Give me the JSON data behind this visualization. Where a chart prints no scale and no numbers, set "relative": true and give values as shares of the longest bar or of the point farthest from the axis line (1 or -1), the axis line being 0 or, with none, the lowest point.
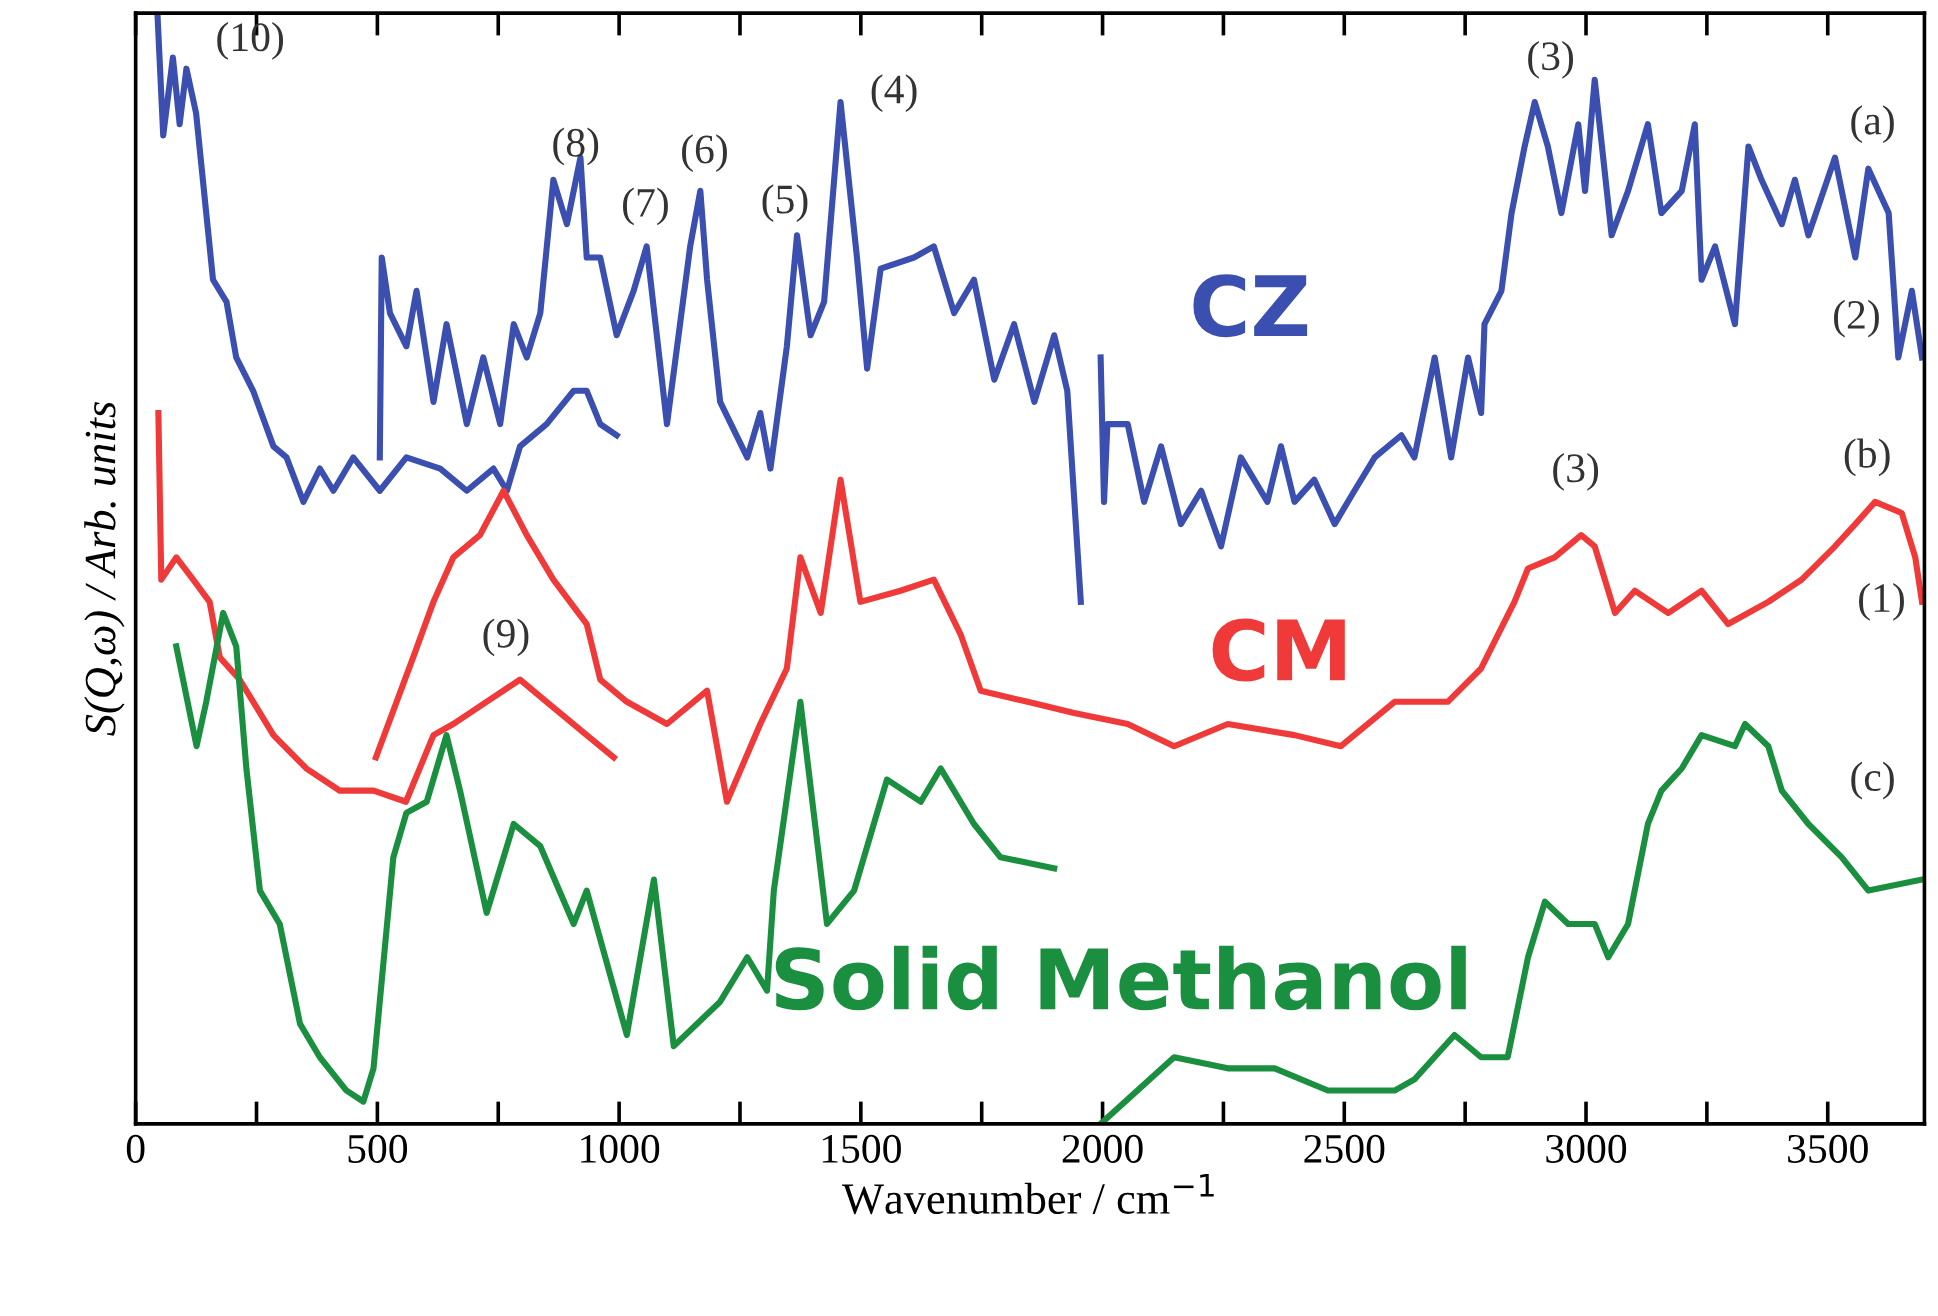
{
  "chart_data": {
    "type": "line",
    "relative": true,
    "xlabel": "Wavenumber / cm$^{−1}$",
    "ylabel": "S(Q,ω) / Arb. units",
    "xlim": [
      0,
      3700
    ],
    "xticks": [
      0,
      {
        "value": 250,
        "label": null
      },
      500,
      {
        "value": 750,
        "label": null
      },
      1000,
      {
        "value": 1250,
        "label": null
      },
      1500,
      {
        "value": 1750,
        "label": null
      },
      2000,
      {
        "value": 2250,
        "label": null
      },
      2500,
      {
        "value": 2750,
        "label": null
      },
      3000,
      {
        "value": 3250,
        "label": null
      },
      3500
    ],
    "tick_labels": "x",
    "grid": false,
    "legend": false,
    "marker": "none",
    "line_style": "solid",
    "series": [
      {
        "color": "#3a4fb0",
        "x": [
          45,
          57,
          77,
          91,
          105,
          125,
          146,
          160,
          188,
          208,
          243,
          285,
          312,
          347,
          381,
          409,
          450,
          505,
          560,
          630,
          685,
          740,
          768,
          795,
          850,
          906,
          933,
          961,
          995
        ],
        "values": [
          1.0,
          0.89,
          0.96,
          0.9,
          0.95,
          0.91,
          0.82,
          0.76,
          0.74,
          0.69,
          0.66,
          0.61,
          0.6,
          0.56,
          0.59,
          0.57,
          0.6,
          0.57,
          0.6,
          0.59,
          0.57,
          0.59,
          0.57,
          0.61,
          0.63,
          0.66,
          0.66,
          0.63,
          0.62
        ]
      },
      {
        "color": "#3a4fb0",
        "x": [
          505,
          509,
          526,
          560,
          581,
          616,
          643,
          685,
          719,
          754,
          782,
          809,
          837,
          864,
          892,
          920,
          933,
          961,
          995,
          1030,
          1057,
          1099,
          1147,
          1168,
          1182,
          1209,
          1265,
          1292,
          1313,
          1347,
          1368,
          1396,
          1424,
          1458,
          1492,
          1513,
          1541,
          1610,
          1651,
          1693,
          1734,
          1776,
          1817,
          1859,
          1900,
          1927,
          1955
        ],
        "values": [
          0.6,
          0.78,
          0.73,
          0.7,
          0.75,
          0.65,
          0.72,
          0.63,
          0.69,
          0.63,
          0.72,
          0.69,
          0.73,
          0.85,
          0.81,
          0.87,
          0.78,
          0.78,
          0.71,
          0.75,
          0.79,
          0.63,
          0.79,
          0.84,
          0.76,
          0.65,
          0.6,
          0.64,
          0.59,
          0.7,
          0.8,
          0.71,
          0.74,
          0.92,
          0.78,
          0.68,
          0.77,
          0.78,
          0.79,
          0.73,
          0.76,
          0.67,
          0.72,
          0.65,
          0.71,
          0.66,
          0.47
        ]
      },
      {
        "name": "CZ",
        "color": "#3a4fb0",
        "x": [
          1996,
          2003,
          2010,
          2052,
          2086,
          2121,
          2162,
          2204,
          2245,
          2286,
          2341,
          2369,
          2397,
          2438,
          2480,
          2521,
          2563,
          2618,
          2645,
          2687,
          2721,
          2756,
          2783,
          2790,
          2825,
          2846,
          2873,
          2894,
          2921,
          2949,
          2984,
          2998,
          3018,
          3053,
          3087,
          3128,
          3156,
          3198,
          3225,
          3239,
          3267,
          3308,
          3336,
          3363,
          3405,
          3432,
          3460,
          3515,
          3557,
          3584,
          3626,
          3646,
          3674,
          3695
        ],
        "values": [
          0.69,
          0.56,
          0.63,
          0.63,
          0.56,
          0.61,
          0.54,
          0.57,
          0.52,
          0.6,
          0.56,
          0.61,
          0.56,
          0.58,
          0.54,
          0.57,
          0.6,
          0.62,
          0.6,
          0.69,
          0.6,
          0.69,
          0.64,
          0.72,
          0.75,
          0.82,
          0.88,
          0.92,
          0.88,
          0.82,
          0.9,
          0.84,
          0.94,
          0.8,
          0.84,
          0.9,
          0.82,
          0.84,
          0.9,
          0.76,
          0.79,
          0.72,
          0.88,
          0.85,
          0.81,
          0.85,
          0.8,
          0.87,
          0.78,
          0.86,
          0.82,
          0.69,
          0.75,
          0.69
        ]
      },
      {
        "color": "#f03a3a",
        "x": [
          47,
          53,
          84,
          119,
          153,
          174,
          215,
          285,
          353,
          422,
          492,
          559,
          616,
          657,
          726,
          795,
          850,
          933,
          989
        ],
        "values": [
          0.64,
          0.49,
          0.51,
          0.49,
          0.47,
          0.42,
          0.4,
          0.35,
          0.32,
          0.3,
          0.3,
          0.29,
          0.35,
          0.36,
          0.38,
          0.4,
          0.38,
          0.35,
          0.33
        ]
      },
      {
        "name": "CM",
        "color": "#f03a3a",
        "x": [
          497,
          574,
          616,
          657,
          712,
          761,
          809,
          864,
          933,
          961,
          1016,
          1099,
          1182,
          1223,
          1292,
          1347,
          1375,
          1417,
          1458,
          1499,
          1582,
          1651,
          1707,
          1748,
          1845,
          1941,
          2052,
          2148,
          2259,
          2397,
          2493,
          2604,
          2714,
          2783,
          2852,
          2880,
          2935,
          2990,
          3018,
          3060,
          3101,
          3170,
          3239,
          3294,
          3377,
          3446,
          3515,
          3557,
          3598,
          3653,
          3681,
          3695
        ],
        "values": [
          0.33,
          0.42,
          0.47,
          0.51,
          0.53,
          0.57,
          0.53,
          0.49,
          0.45,
          0.4,
          0.38,
          0.36,
          0.39,
          0.29,
          0.36,
          0.41,
          0.51,
          0.46,
          0.58,
          0.47,
          0.48,
          0.49,
          0.44,
          0.39,
          0.38,
          0.37,
          0.36,
          0.34,
          0.36,
          0.35,
          0.34,
          0.38,
          0.38,
          0.41,
          0.47,
          0.5,
          0.51,
          0.53,
          0.52,
          0.46,
          0.48,
          0.46,
          0.48,
          0.45,
          0.47,
          0.49,
          0.52,
          0.54,
          0.56,
          0.55,
          0.51,
          0.47
        ]
      },
      {
        "color": "#1a8f3f",
        "x": [
          84,
          98,
          126,
          146,
          181,
          208,
          229,
          257,
          298,
          340,
          381,
          436,
          471,
          492,
          533,
          560,
          602,
          643,
          671,
          726,
          782,
          837,
          906,
          933,
          1016,
          1072,
          1113,
          1209,
          1265,
          1306,
          1320,
          1375,
          1430,
          1486,
          1554,
          1624,
          1665,
          1734,
          1789,
          1900
        ],
        "values": [
          0.43,
          0.4,
          0.34,
          0.38,
          0.46,
          0.43,
          0.32,
          0.21,
          0.18,
          0.09,
          0.06,
          0.03,
          0.02,
          0.05,
          0.24,
          0.28,
          0.29,
          0.35,
          0.3,
          0.19,
          0.27,
          0.25,
          0.18,
          0.21,
          0.08,
          0.22,
          0.07,
          0.11,
          0.15,
          0.12,
          0.21,
          0.38,
          0.18,
          0.21,
          0.31,
          0.29,
          0.32,
          0.27,
          0.24,
          0.23
        ]
      },
      {
        "name": "Solid Methanol",
        "color": "#1a8f3f",
        "x": [
          1996,
          2148,
          2259,
          2356,
          2466,
          2604,
          2645,
          2728,
          2783,
          2838,
          2880,
          2915,
          2963,
          3018,
          3046,
          3087,
          3128,
          3156,
          3198,
          3239,
          3308,
          3329,
          3377,
          3405,
          3460,
          3529,
          3584,
          3695
        ],
        "values": [
          0.0,
          0.06,
          0.05,
          0.05,
          0.03,
          0.03,
          0.04,
          0.08,
          0.06,
          0.06,
          0.15,
          0.2,
          0.18,
          0.18,
          0.15,
          0.18,
          0.27,
          0.3,
          0.32,
          0.35,
          0.34,
          0.36,
          0.34,
          0.3,
          0.27,
          0.24,
          0.21,
          0.22
        ]
      }
    ],
    "annotations": [
      "(10)",
      "(8)",
      "(7)",
      "(6)",
      "(5)",
      "(4)",
      "(3)",
      "(a)",
      "(2)",
      "(3)",
      "(b)",
      "(1)",
      "(9)",
      "(c)"
    ]
  }
}
